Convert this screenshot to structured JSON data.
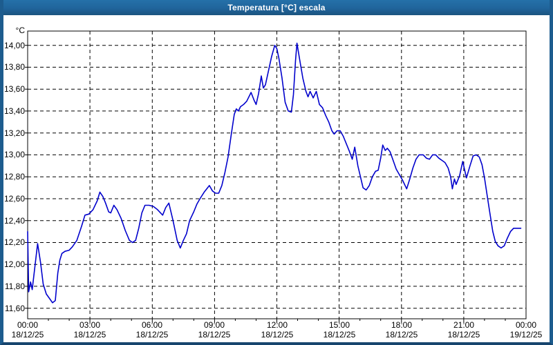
{
  "window": {
    "title": "Temperatura [°C] escala"
  },
  "colors": {
    "frame": "#1D5C8E",
    "titlebar": "#20649B",
    "title_text": "#FFFFFF",
    "line": "#0000CC",
    "grid": "#000000",
    "plot_border": "#000000",
    "plot_bg": "#FFFFFF",
    "label_text": "#000000"
  },
  "chart_data": {
    "type": "line",
    "title": "Temperatura [°C] escala",
    "y_unit": "°C",
    "xlabel": "",
    "ylabel": "",
    "grid": "dashed",
    "legend": "none",
    "ylim": [
      11.5,
      14.13
    ],
    "xlim_hours": [
      0,
      24
    ],
    "minor_x_tick_hours": 1,
    "y_ticks": {
      "values": [
        14.0,
        13.8,
        13.6,
        13.4,
        13.2,
        13.0,
        12.8,
        12.6,
        12.4,
        12.2,
        12.0,
        11.8,
        11.6
      ],
      "labels": [
        "14,00",
        "13,80",
        "13,60",
        "13,40",
        "13,20",
        "13,00",
        "12,80",
        "12,60",
        "12,40",
        "12,20",
        "12,00",
        "11,80",
        "11,60"
      ]
    },
    "x_ticks": [
      {
        "hour": 0,
        "time": "00:00",
        "date": "18/12/25"
      },
      {
        "hour": 3,
        "time": "03:00",
        "date": "18/12/25"
      },
      {
        "hour": 6,
        "time": "06:00",
        "date": "18/12/25"
      },
      {
        "hour": 9,
        "time": "09:00",
        "date": "18/12/25"
      },
      {
        "hour": 12,
        "time": "12:00",
        "date": "18/12/25"
      },
      {
        "hour": 15,
        "time": "15:00",
        "date": "18/12/25"
      },
      {
        "hour": 18,
        "time": "18:00",
        "date": "18/12/25"
      },
      {
        "hour": 21,
        "time": "21:00",
        "date": "18/12/25"
      },
      {
        "hour": 24,
        "time": "00:00",
        "date": "19/12/25"
      }
    ],
    "series": [
      {
        "name": "Temperatura",
        "color": "#0000CC",
        "points": [
          [
            0.0,
            12.3
          ],
          [
            0.05,
            11.75
          ],
          [
            0.14,
            11.84
          ],
          [
            0.22,
            11.77
          ],
          [
            0.35,
            11.98
          ],
          [
            0.48,
            12.19
          ],
          [
            0.62,
            12.02
          ],
          [
            0.75,
            11.82
          ],
          [
            0.9,
            11.73
          ],
          [
            1.05,
            11.69
          ],
          [
            1.2,
            11.65
          ],
          [
            1.33,
            11.67
          ],
          [
            1.45,
            11.92
          ],
          [
            1.55,
            12.04
          ],
          [
            1.65,
            12.1
          ],
          [
            1.8,
            12.12
          ],
          [
            2.0,
            12.13
          ],
          [
            2.15,
            12.16
          ],
          [
            2.37,
            12.22
          ],
          [
            2.6,
            12.35
          ],
          [
            2.76,
            12.45
          ],
          [
            2.95,
            12.46
          ],
          [
            3.15,
            12.5
          ],
          [
            3.35,
            12.58
          ],
          [
            3.48,
            12.66
          ],
          [
            3.62,
            12.62
          ],
          [
            3.75,
            12.56
          ],
          [
            3.9,
            12.48
          ],
          [
            4.0,
            12.47
          ],
          [
            4.15,
            12.54
          ],
          [
            4.3,
            12.5
          ],
          [
            4.5,
            12.42
          ],
          [
            4.7,
            12.31
          ],
          [
            4.9,
            12.22
          ],
          [
            5.05,
            12.2
          ],
          [
            5.2,
            12.22
          ],
          [
            5.35,
            12.33
          ],
          [
            5.5,
            12.47
          ],
          [
            5.65,
            12.54
          ],
          [
            5.85,
            12.54
          ],
          [
            6.05,
            12.53
          ],
          [
            6.25,
            12.5
          ],
          [
            6.5,
            12.45
          ],
          [
            6.65,
            12.52
          ],
          [
            6.8,
            12.56
          ],
          [
            7.0,
            12.4
          ],
          [
            7.2,
            12.22
          ],
          [
            7.35,
            12.15
          ],
          [
            7.5,
            12.22
          ],
          [
            7.65,
            12.28
          ],
          [
            7.8,
            12.4
          ],
          [
            8.0,
            12.48
          ],
          [
            8.15,
            12.55
          ],
          [
            8.3,
            12.6
          ],
          [
            8.5,
            12.66
          ],
          [
            8.75,
            12.72
          ],
          [
            8.9,
            12.67
          ],
          [
            9.05,
            12.65
          ],
          [
            9.2,
            12.65
          ],
          [
            9.35,
            12.72
          ],
          [
            9.5,
            12.84
          ],
          [
            9.65,
            12.98
          ],
          [
            9.8,
            13.18
          ],
          [
            9.95,
            13.37
          ],
          [
            10.05,
            13.42
          ],
          [
            10.15,
            13.4
          ],
          [
            10.25,
            13.44
          ],
          [
            10.4,
            13.46
          ],
          [
            10.55,
            13.49
          ],
          [
            10.76,
            13.57
          ],
          [
            10.9,
            13.5
          ],
          [
            11.0,
            13.46
          ],
          [
            11.12,
            13.56
          ],
          [
            11.25,
            13.72
          ],
          [
            11.35,
            13.61
          ],
          [
            11.45,
            13.64
          ],
          [
            11.6,
            13.77
          ],
          [
            11.75,
            13.9
          ],
          [
            11.9,
            14.0
          ],
          [
            12.0,
            13.97
          ],
          [
            12.1,
            13.88
          ],
          [
            12.25,
            13.7
          ],
          [
            12.4,
            13.48
          ],
          [
            12.55,
            13.4
          ],
          [
            12.7,
            13.39
          ],
          [
            12.8,
            13.55
          ],
          [
            12.9,
            13.86
          ],
          [
            12.97,
            14.02
          ],
          [
            13.1,
            13.87
          ],
          [
            13.25,
            13.7
          ],
          [
            13.4,
            13.58
          ],
          [
            13.5,
            13.53
          ],
          [
            13.6,
            13.58
          ],
          [
            13.75,
            13.52
          ],
          [
            13.9,
            13.58
          ],
          [
            14.05,
            13.46
          ],
          [
            14.2,
            13.43
          ],
          [
            14.35,
            13.36
          ],
          [
            14.5,
            13.3
          ],
          [
            14.65,
            13.22
          ],
          [
            14.76,
            13.19
          ],
          [
            14.9,
            13.22
          ],
          [
            15.05,
            13.22
          ],
          [
            15.2,
            13.17
          ],
          [
            15.35,
            13.1
          ],
          [
            15.5,
            13.03
          ],
          [
            15.63,
            12.96
          ],
          [
            15.75,
            13.07
          ],
          [
            15.9,
            12.9
          ],
          [
            16.0,
            12.82
          ],
          [
            16.15,
            12.7
          ],
          [
            16.3,
            12.68
          ],
          [
            16.45,
            12.72
          ],
          [
            16.6,
            12.8
          ],
          [
            16.75,
            12.85
          ],
          [
            16.88,
            12.86
          ],
          [
            17.0,
            12.97
          ],
          [
            17.1,
            13.09
          ],
          [
            17.22,
            13.04
          ],
          [
            17.32,
            13.06
          ],
          [
            17.45,
            13.03
          ],
          [
            17.6,
            12.95
          ],
          [
            17.75,
            12.87
          ],
          [
            17.9,
            12.82
          ],
          [
            18.05,
            12.77
          ],
          [
            18.25,
            12.69
          ],
          [
            18.4,
            12.78
          ],
          [
            18.55,
            12.88
          ],
          [
            18.7,
            12.96
          ],
          [
            18.85,
            13.0
          ],
          [
            19.05,
            13.0
          ],
          [
            19.2,
            12.97
          ],
          [
            19.35,
            12.96
          ],
          [
            19.5,
            13.0
          ],
          [
            19.65,
            13.0
          ],
          [
            19.8,
            12.97
          ],
          [
            19.95,
            12.95
          ],
          [
            20.1,
            12.93
          ],
          [
            20.25,
            12.88
          ],
          [
            20.37,
            12.8
          ],
          [
            20.45,
            12.69
          ],
          [
            20.55,
            12.78
          ],
          [
            20.63,
            12.73
          ],
          [
            20.8,
            12.81
          ],
          [
            20.95,
            12.94
          ],
          [
            21.13,
            12.79
          ],
          [
            21.3,
            12.9
          ],
          [
            21.45,
            12.99
          ],
          [
            21.6,
            13.0
          ],
          [
            21.75,
            12.98
          ],
          [
            21.88,
            12.91
          ],
          [
            22.0,
            12.79
          ],
          [
            22.12,
            12.64
          ],
          [
            22.25,
            12.48
          ],
          [
            22.4,
            12.3
          ],
          [
            22.52,
            12.21
          ],
          [
            22.65,
            12.17
          ],
          [
            22.8,
            12.15
          ],
          [
            22.95,
            12.17
          ],
          [
            23.1,
            12.24
          ],
          [
            23.25,
            12.3
          ],
          [
            23.4,
            12.33
          ],
          [
            23.55,
            12.33
          ],
          [
            23.75,
            12.33
          ]
        ]
      }
    ]
  }
}
